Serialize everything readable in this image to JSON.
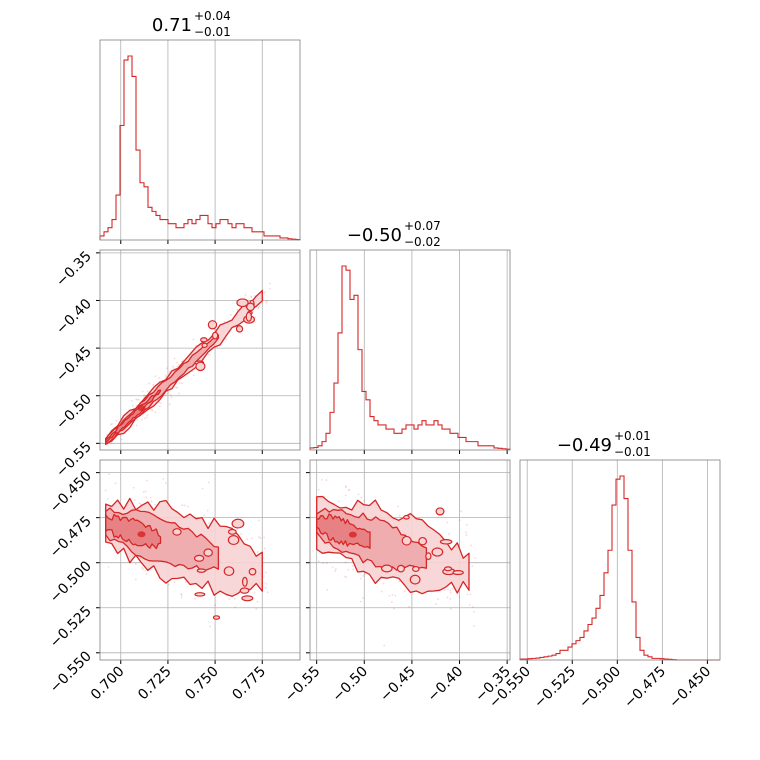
{
  "chart_data": {
    "type": "corner",
    "color": "#d62728",
    "fill_colors": [
      "#f7d3d4",
      "#eea9ab",
      "#e57c80"
    ],
    "grid": true,
    "diagonal_titles": [
      {
        "value": "0.71",
        "upper": "+0.04",
        "lower": "−0.01"
      },
      {
        "value": "−0.50",
        "upper": "+0.07",
        "lower": "−0.02"
      },
      {
        "value": "−0.49",
        "upper": "+0.01",
        "lower": "−0.01"
      }
    ],
    "axes": [
      {
        "range": [
          0.689,
          0.795
        ],
        "ticks": [
          0.7,
          0.725,
          0.75,
          0.775
        ],
        "tick_labels": [
          "0.700",
          "0.725",
          "0.750",
          "0.775"
        ]
      },
      {
        "range": [
          -0.557,
          -0.347
        ],
        "ticks": [
          -0.55,
          -0.5,
          -0.45,
          -0.4,
          -0.35
        ],
        "tick_labels": [
          "−0.55",
          "−0.50",
          "−0.45",
          "−0.40",
          "−0.35"
        ]
      },
      {
        "range": [
          -0.554,
          -0.443
        ],
        "ticks": [
          -0.55,
          -0.525,
          -0.5,
          -0.475,
          -0.45
        ],
        "tick_labels": [
          "−0.550",
          "−0.525",
          "−0.500",
          "−0.475",
          "−0.450"
        ]
      }
    ],
    "histograms": [
      {
        "edges_range": [
          0.689,
          0.795
        ],
        "bins": 50,
        "counts": [
          1,
          2,
          3,
          5,
          11,
          28,
          44,
          45,
          40,
          22,
          14,
          13,
          8,
          7,
          6,
          5,
          5,
          4,
          4,
          3,
          3,
          4,
          5,
          4,
          5,
          6,
          6,
          4,
          3,
          4,
          5,
          5,
          4,
          3,
          4,
          4,
          3,
          3,
          2,
          2,
          2,
          1,
          1,
          1,
          1,
          0.5,
          0.5,
          0.3,
          0.2,
          0.1
        ]
      },
      {
        "edges_range": [
          -0.557,
          -0.347
        ],
        "bins": 50,
        "counts": [
          0.5,
          0.6,
          1,
          2,
          4,
          9,
          16,
          28,
          44,
          43,
          36,
          37,
          24,
          14,
          12,
          8,
          7,
          6,
          6,
          5,
          5,
          4,
          4,
          5,
          6,
          6,
          5,
          6,
          7,
          6,
          6,
          7,
          6,
          5,
          5,
          4,
          4,
          3,
          3,
          2,
          2,
          2,
          1,
          1,
          1,
          1,
          0.5,
          0.4,
          0.3,
          0.2
        ]
      },
      {
        "edges_range": [
          -0.554,
          -0.443
        ],
        "bins": 50,
        "counts": [
          0.3,
          0.3,
          0.4,
          0.5,
          0.6,
          0.8,
          1,
          1.2,
          1.5,
          2,
          3,
          3,
          4,
          5,
          6,
          7,
          9,
          11,
          13,
          16,
          20,
          27,
          34,
          48,
          56,
          57,
          50,
          34,
          18,
          7,
          3,
          1.5,
          1,
          0.5,
          0.5,
          0.4,
          0.3,
          0.2,
          0.1,
          0,
          0,
          0,
          0,
          0,
          0,
          0,
          0,
          0,
          0,
          0
        ]
      }
    ],
    "scatter_panels": [
      {
        "x_axis": 0,
        "y_axis": 1,
        "mode": "correlated",
        "x_anchor": [
          0.692,
          0.775
        ],
        "y_anchor": [
          -0.548,
          -0.395
        ],
        "spread": 0.007,
        "x_center": 0.707,
        "x_width": 0.02
      },
      {
        "x_axis": 0,
        "y_axis": 2,
        "mode": "blob",
        "x_anchor": [
          0.692,
          0.775
        ],
        "y_anchor": [
          -0.478,
          -0.505
        ],
        "spread": 0.009,
        "x_center": 0.707,
        "x_width": 0.02
      },
      {
        "x_axis": 1,
        "y_axis": 2,
        "mode": "blob",
        "x_anchor": [
          -0.55,
          -0.39
        ],
        "y_anchor": [
          -0.478,
          -0.505
        ],
        "spread": 0.009,
        "x_center": -0.52,
        "x_width": 0.04
      }
    ]
  }
}
